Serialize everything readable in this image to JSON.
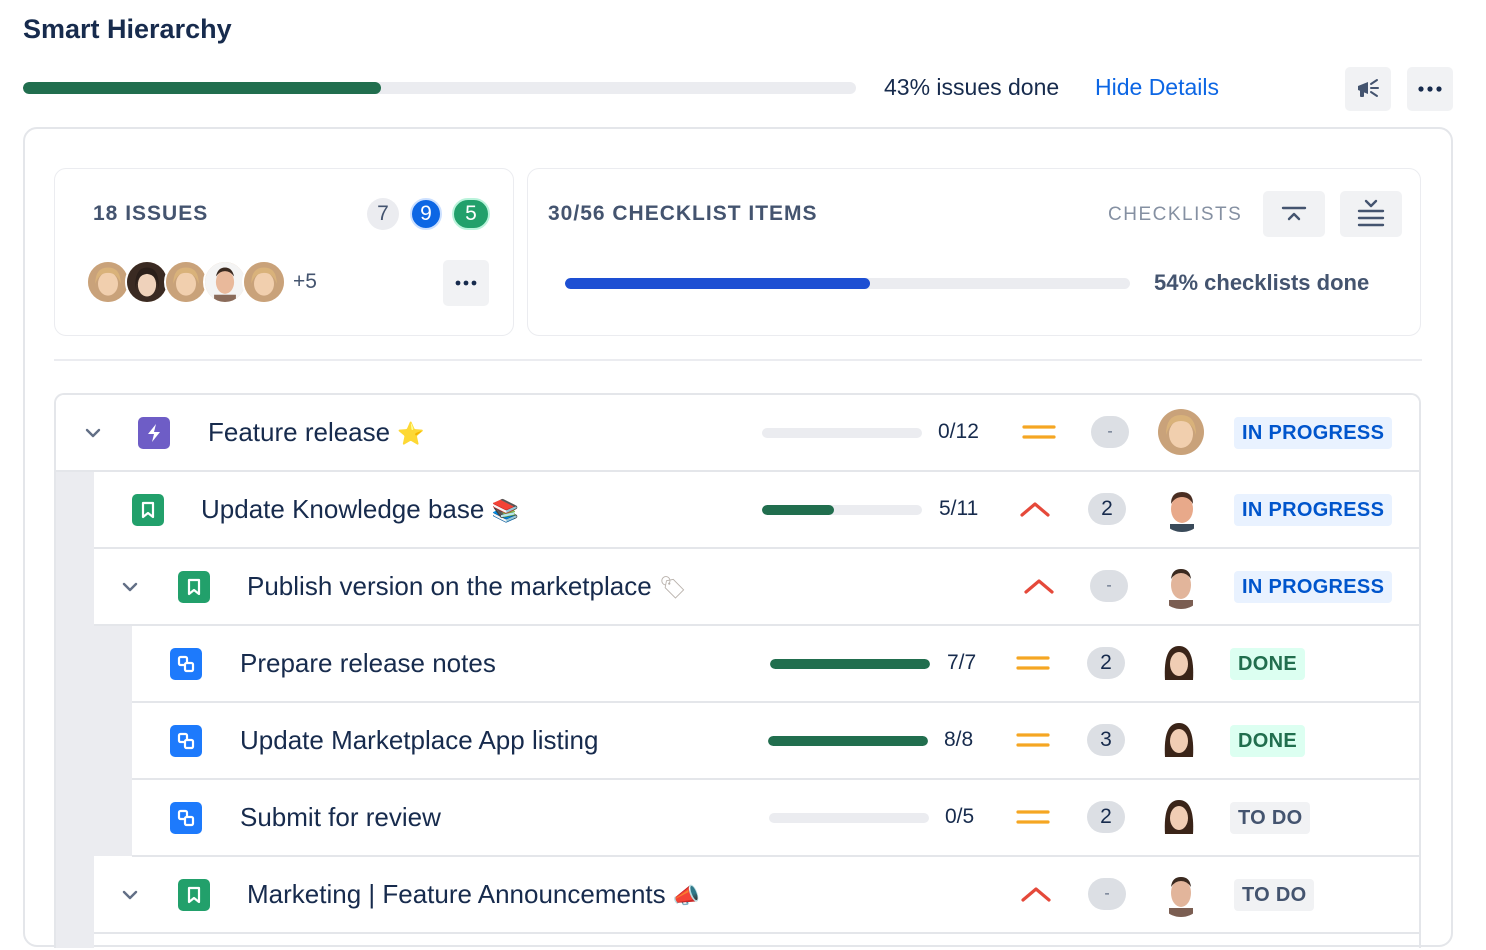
{
  "header": {
    "title": "Smart Hierarchy",
    "issues_done_pct": 0.43,
    "issues_done_text": "43% issues done",
    "hide_details": "Hide Details"
  },
  "issues_card": {
    "title": "18 ISSUES",
    "badges": [
      "7",
      "9",
      "5"
    ],
    "more_assignees": "+5"
  },
  "checklist_card": {
    "title": "30/56 CHECKLIST ITEMS",
    "label": "CHECKLISTS",
    "progress_pct": 0.54,
    "progress_text": "54% checklists done"
  },
  "rows": [
    {
      "title": "Feature release",
      "emoji": "⭐",
      "type": "epic",
      "progress": 0.0,
      "ratio": "0/12",
      "priority": "medium",
      "points": "-",
      "status": "IN PROGRESS"
    },
    {
      "title": "Update Knowledge base",
      "emoji": "📚",
      "type": "story",
      "progress": 0.45,
      "ratio": "5/11",
      "priority": "high",
      "points": "2",
      "status": "IN PROGRESS"
    },
    {
      "title": "Publish version on the marketplace",
      "emoji": "🏷",
      "type": "story",
      "progress": null,
      "ratio": "",
      "priority": "high",
      "points": "-",
      "status": "IN PROGRESS"
    },
    {
      "title": "Prepare release notes",
      "emoji": "",
      "type": "subtask",
      "progress": 1.0,
      "ratio": "7/7",
      "priority": "medium",
      "points": "2",
      "status": "DONE"
    },
    {
      "title": "Update Marketplace App listing",
      "emoji": "",
      "type": "subtask",
      "progress": 1.0,
      "ratio": "8/8",
      "priority": "medium",
      "points": "3",
      "status": "DONE"
    },
    {
      "title": "Submit for review",
      "emoji": "",
      "type": "subtask",
      "progress": 0.0,
      "ratio": "0/5",
      "priority": "medium",
      "points": "2",
      "status": "TO DO"
    },
    {
      "title": "Marketing | Feature Announcements",
      "emoji": "📣",
      "type": "story",
      "progress": null,
      "ratio": "",
      "priority": "high",
      "points": "-",
      "status": "TO DO"
    }
  ],
  "colors": {
    "issues_progress": "#216e4e",
    "checklist_progress": "#1d4fd3",
    "priority_medium": "#f5a623",
    "priority_high": "#e5493a"
  }
}
